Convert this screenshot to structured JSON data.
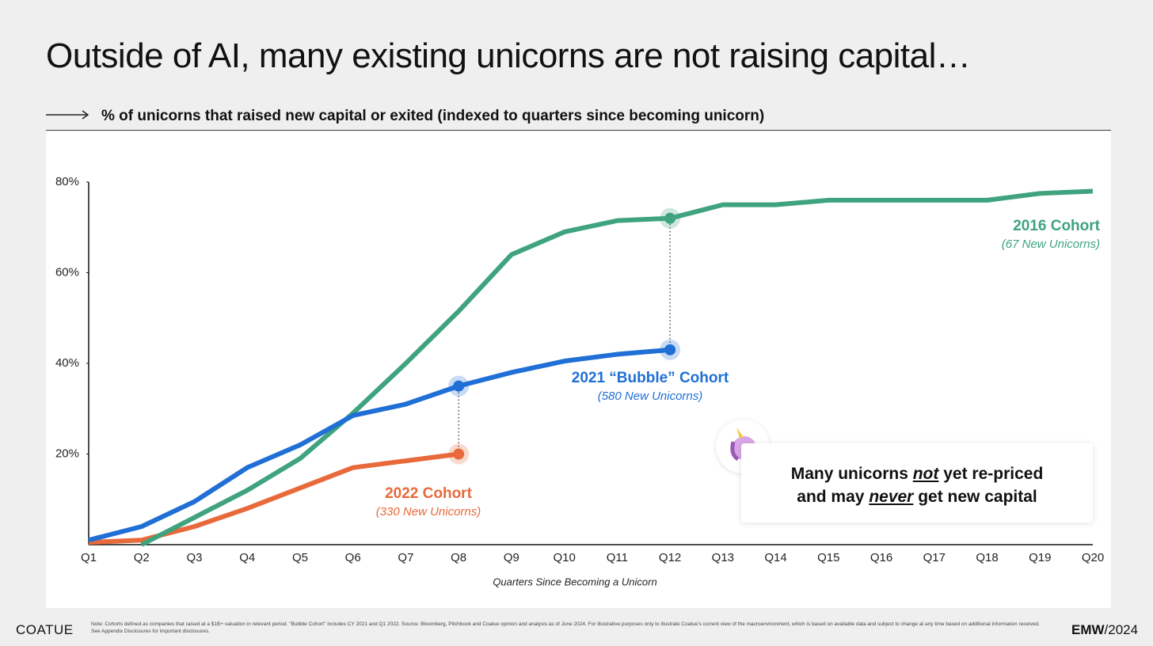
{
  "title": "Outside of AI, many existing unicorns are not raising capital…",
  "subtitle": "% of unicorns that raised new capital or exited (indexed to quarters since becoming unicorn)",
  "chart_data": {
    "type": "line",
    "categories": [
      "Q1",
      "Q2",
      "Q3",
      "Q4",
      "Q5",
      "Q6",
      "Q7",
      "Q8",
      "Q9",
      "Q10",
      "Q11",
      "Q12",
      "Q13",
      "Q14",
      "Q15",
      "Q16",
      "Q17",
      "Q18",
      "Q19",
      "Q20"
    ],
    "series": [
      {
        "name": "2016 Cohort",
        "note": "(67 New Unicorns)",
        "color": "#3fa37e",
        "values": [
          null,
          0,
          6,
          12,
          19,
          29,
          40,
          51.5,
          64,
          69,
          71.5,
          72,
          75,
          75,
          76,
          76,
          76,
          76,
          77.5,
          78
        ]
      },
      {
        "name": "2021 “Bubble” Cohort",
        "note": "(580 New Unicorns)",
        "color": "#1f6fd6",
        "values": [
          1,
          4,
          9.5,
          17,
          22,
          28.5,
          31,
          35,
          38,
          40.5,
          42,
          43,
          null,
          null,
          null,
          null,
          null,
          null,
          null,
          null
        ]
      },
      {
        "name": "2022 Cohort",
        "note": "(330 New Unicorns)",
        "color": "#e8693a",
        "values": [
          0.5,
          1,
          4,
          8,
          12.5,
          17,
          18.5,
          20,
          null,
          null,
          null,
          null,
          null,
          null,
          null,
          null,
          null,
          null,
          null,
          null
        ]
      }
    ],
    "ylim": [
      0,
      80
    ],
    "yticks": [
      {
        "value": 20,
        "label": "20%"
      },
      {
        "value": 40,
        "label": "40%"
      },
      {
        "value": 60,
        "label": "60%"
      },
      {
        "value": 80,
        "label": "80%"
      }
    ],
    "grid": false,
    "xlabel": "Quarters Since Becoming a Unicorn"
  },
  "callout": {
    "line1": [
      "Many unicorns ",
      "not",
      " yet re-priced"
    ],
    "line2": [
      "and may ",
      "never",
      " get new capital"
    ]
  },
  "footer": {
    "logo": "COATUE",
    "note": "Note: Cohorts defined as companies that raised at a $1B+ valuation in relevant period. \"Bubble Cohort\" includes CY 2021 and Q1 2022. Source: Bloomberg, Pitchbook and Coatue opinion and analysis as of June 2024. For illustrative purposes only to illustrate Coatue's current view of the macroenvironment, which is based on available data and subject to change at any time based on additional information received. See Appendix Disclosures for important disclosures.",
    "brand_bold": "EMW",
    "brand_rest": "/2024"
  }
}
